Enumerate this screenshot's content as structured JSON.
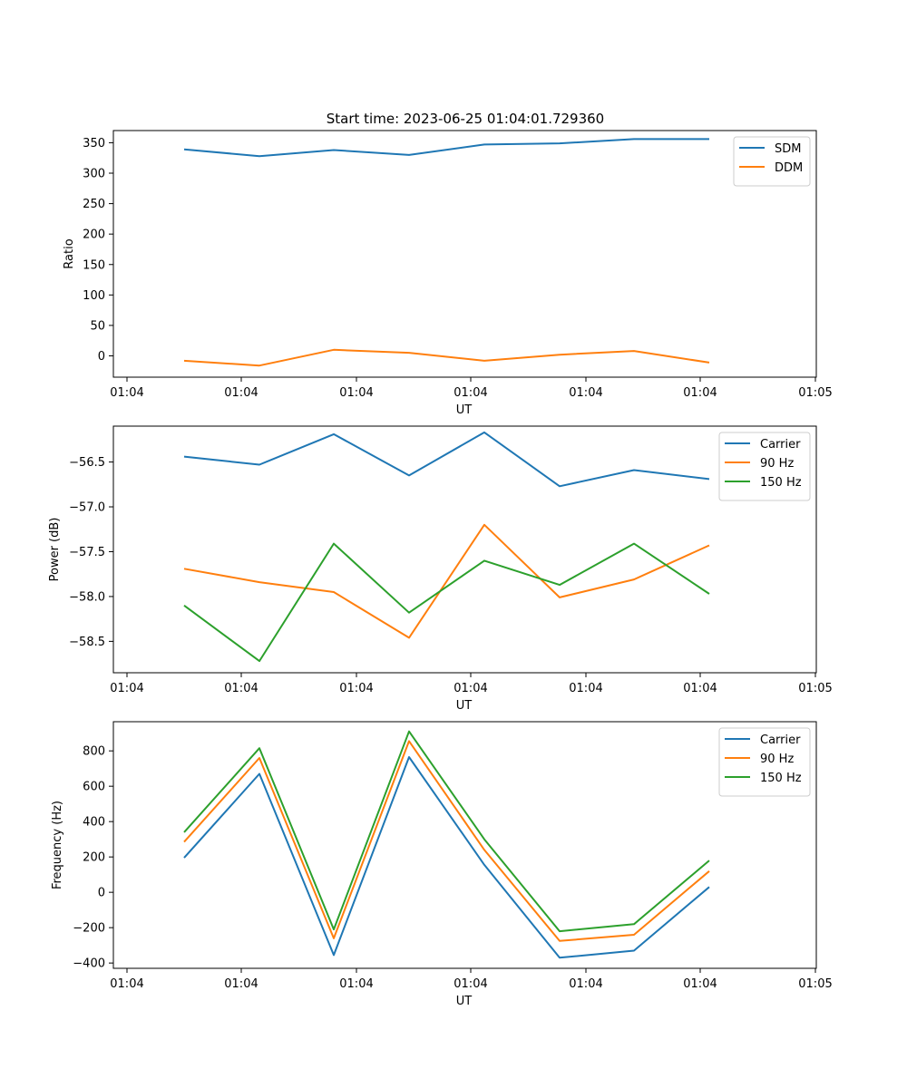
{
  "figure_title": "Start time: 2023-06-25 01:04:01.729360",
  "chart_data": [
    {
      "type": "line",
      "title": "Start time: 2023-06-25 01:04:01.729360",
      "xlabel": "UT",
      "ylabel": "Ratio",
      "x_tick_labels": [
        "01:04",
        "01:04",
        "01:04",
        "01:04",
        "01:04",
        "01:04",
        "01:04"
      ],
      "x_end_label": "01:05",
      "yticks": [
        0,
        50,
        100,
        150,
        200,
        250,
        300,
        350
      ],
      "ylim": [
        -35,
        370
      ],
      "legend_position": "top-right",
      "series": [
        {
          "name": "SDM",
          "color": "#1f77b4",
          "values": [
            339,
            328,
            338,
            330,
            347,
            349,
            356,
            356
          ]
        },
        {
          "name": "DDM",
          "color": "#ff7f0e",
          "values": [
            -8,
            -16,
            10,
            5,
            -8,
            2,
            8,
            -11
          ]
        }
      ]
    },
    {
      "type": "line",
      "title": "",
      "xlabel": "UT",
      "ylabel": "Power (dB)",
      "x_tick_labels": [
        "01:04",
        "01:04",
        "01:04",
        "01:04",
        "01:04",
        "01:04",
        "01:04"
      ],
      "x_end_label": "01:05",
      "yticks": [
        -56.5,
        -57.0,
        -57.5,
        -58.0,
        -58.5
      ],
      "ytick_labels": [
        "−56.5",
        "−57.0",
        "−57.5",
        "−58.0",
        "−58.5"
      ],
      "ylim": [
        -58.85,
        -56.1
      ],
      "legend_position": "top-right",
      "series": [
        {
          "name": "Carrier",
          "color": "#1f77b4",
          "values": [
            -56.44,
            -56.53,
            -56.19,
            -56.65,
            -56.17,
            -56.77,
            -56.59,
            -56.69
          ]
        },
        {
          "name": "90 Hz",
          "color": "#ff7f0e",
          "values": [
            -57.69,
            -57.84,
            -57.95,
            -58.46,
            -57.2,
            -58.01,
            -57.81,
            -57.43
          ]
        },
        {
          "name": "150 Hz",
          "color": "#2ca02c",
          "values": [
            -58.1,
            -58.72,
            -57.41,
            -58.18,
            -57.6,
            -57.87,
            -57.41,
            -57.97
          ]
        }
      ]
    },
    {
      "type": "line",
      "title": "",
      "xlabel": "UT",
      "ylabel": "Frequency (Hz)",
      "x_tick_labels": [
        "01:04",
        "01:04",
        "01:04",
        "01:04",
        "01:04",
        "01:04",
        "01:04"
      ],
      "x_end_label": "01:05",
      "yticks": [
        -400,
        -200,
        0,
        200,
        400,
        600,
        800
      ],
      "ytick_labels": [
        "−400",
        "−200",
        "0",
        "200",
        "400",
        "600",
        "800"
      ],
      "ylim": [
        -430,
        965
      ],
      "legend_position": "top-right",
      "series": [
        {
          "name": "Carrier",
          "color": "#1f77b4",
          "values": [
            195,
            670,
            -355,
            765,
            155,
            -370,
            -330,
            30
          ]
        },
        {
          "name": "90 Hz",
          "color": "#ff7f0e",
          "values": [
            285,
            760,
            -260,
            855,
            240,
            -275,
            -240,
            120
          ]
        },
        {
          "name": "150 Hz",
          "color": "#2ca02c",
          "values": [
            340,
            815,
            -210,
            910,
            300,
            -220,
            -180,
            180
          ]
        }
      ]
    }
  ]
}
